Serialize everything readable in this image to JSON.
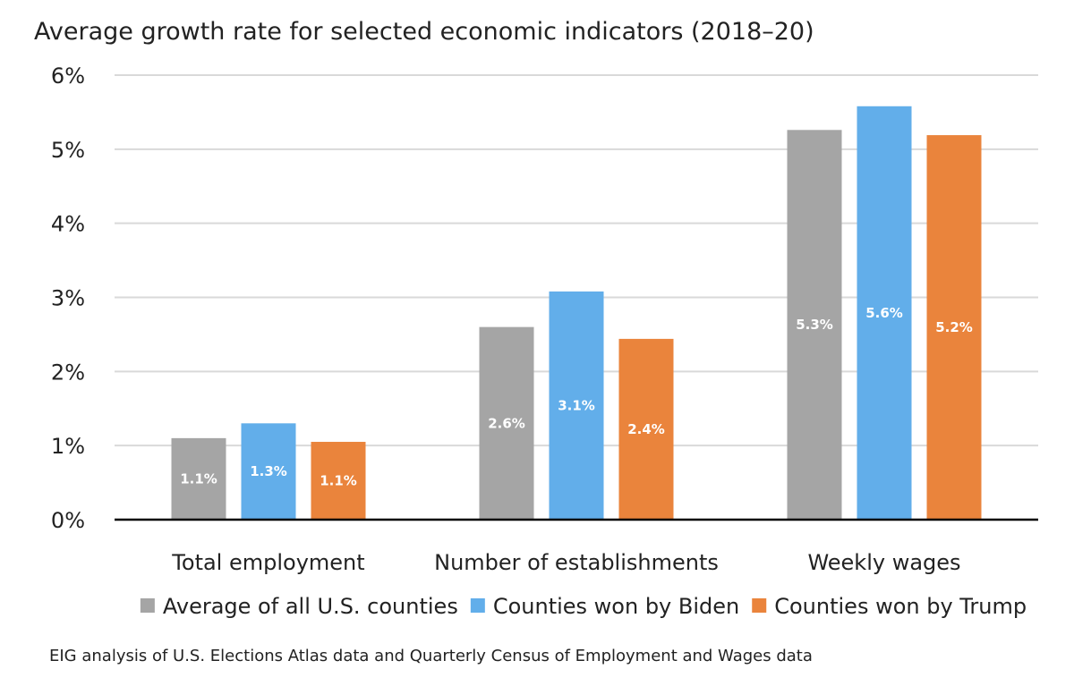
{
  "chart_data": {
    "type": "bar",
    "title": "Average growth rate for selected economic indicators (2018–20)",
    "xlabel": "",
    "ylabel": "",
    "ylim": [
      0,
      6
    ],
    "yticks": [
      0,
      1,
      2,
      3,
      4,
      5,
      6
    ],
    "ytick_labels": [
      "0%",
      "1%",
      "2%",
      "3%",
      "4%",
      "5%",
      "6%"
    ],
    "categories": [
      "Total employment",
      "Number of establishments",
      "Weekly wages"
    ],
    "series": [
      {
        "name": "Average of all U.S. counties",
        "color": "#a5a5a5",
        "values": [
          1.1,
          2.6,
          5.26
        ],
        "labels": [
          "1.1%",
          "2.6%",
          "5.3%"
        ]
      },
      {
        "name": "Counties won by Biden",
        "color": "#62aeea",
        "values": [
          1.3,
          3.08,
          5.58
        ],
        "labels": [
          "1.3%",
          "3.1%",
          "5.6%"
        ]
      },
      {
        "name": "Counties won by Trump",
        "color": "#ea843c",
        "values": [
          1.05,
          2.44,
          5.19
        ],
        "labels": [
          "1.1%",
          "2.4%",
          "5.2%"
        ]
      }
    ],
    "grid": true,
    "legend": "bottom",
    "source": "EIG analysis of U.S. Elections Atlas data and Quarterly Census of Employment and Wages data"
  },
  "colors": {
    "grid": "#d9d9d9",
    "axis": "#000000",
    "text": "#222222"
  }
}
